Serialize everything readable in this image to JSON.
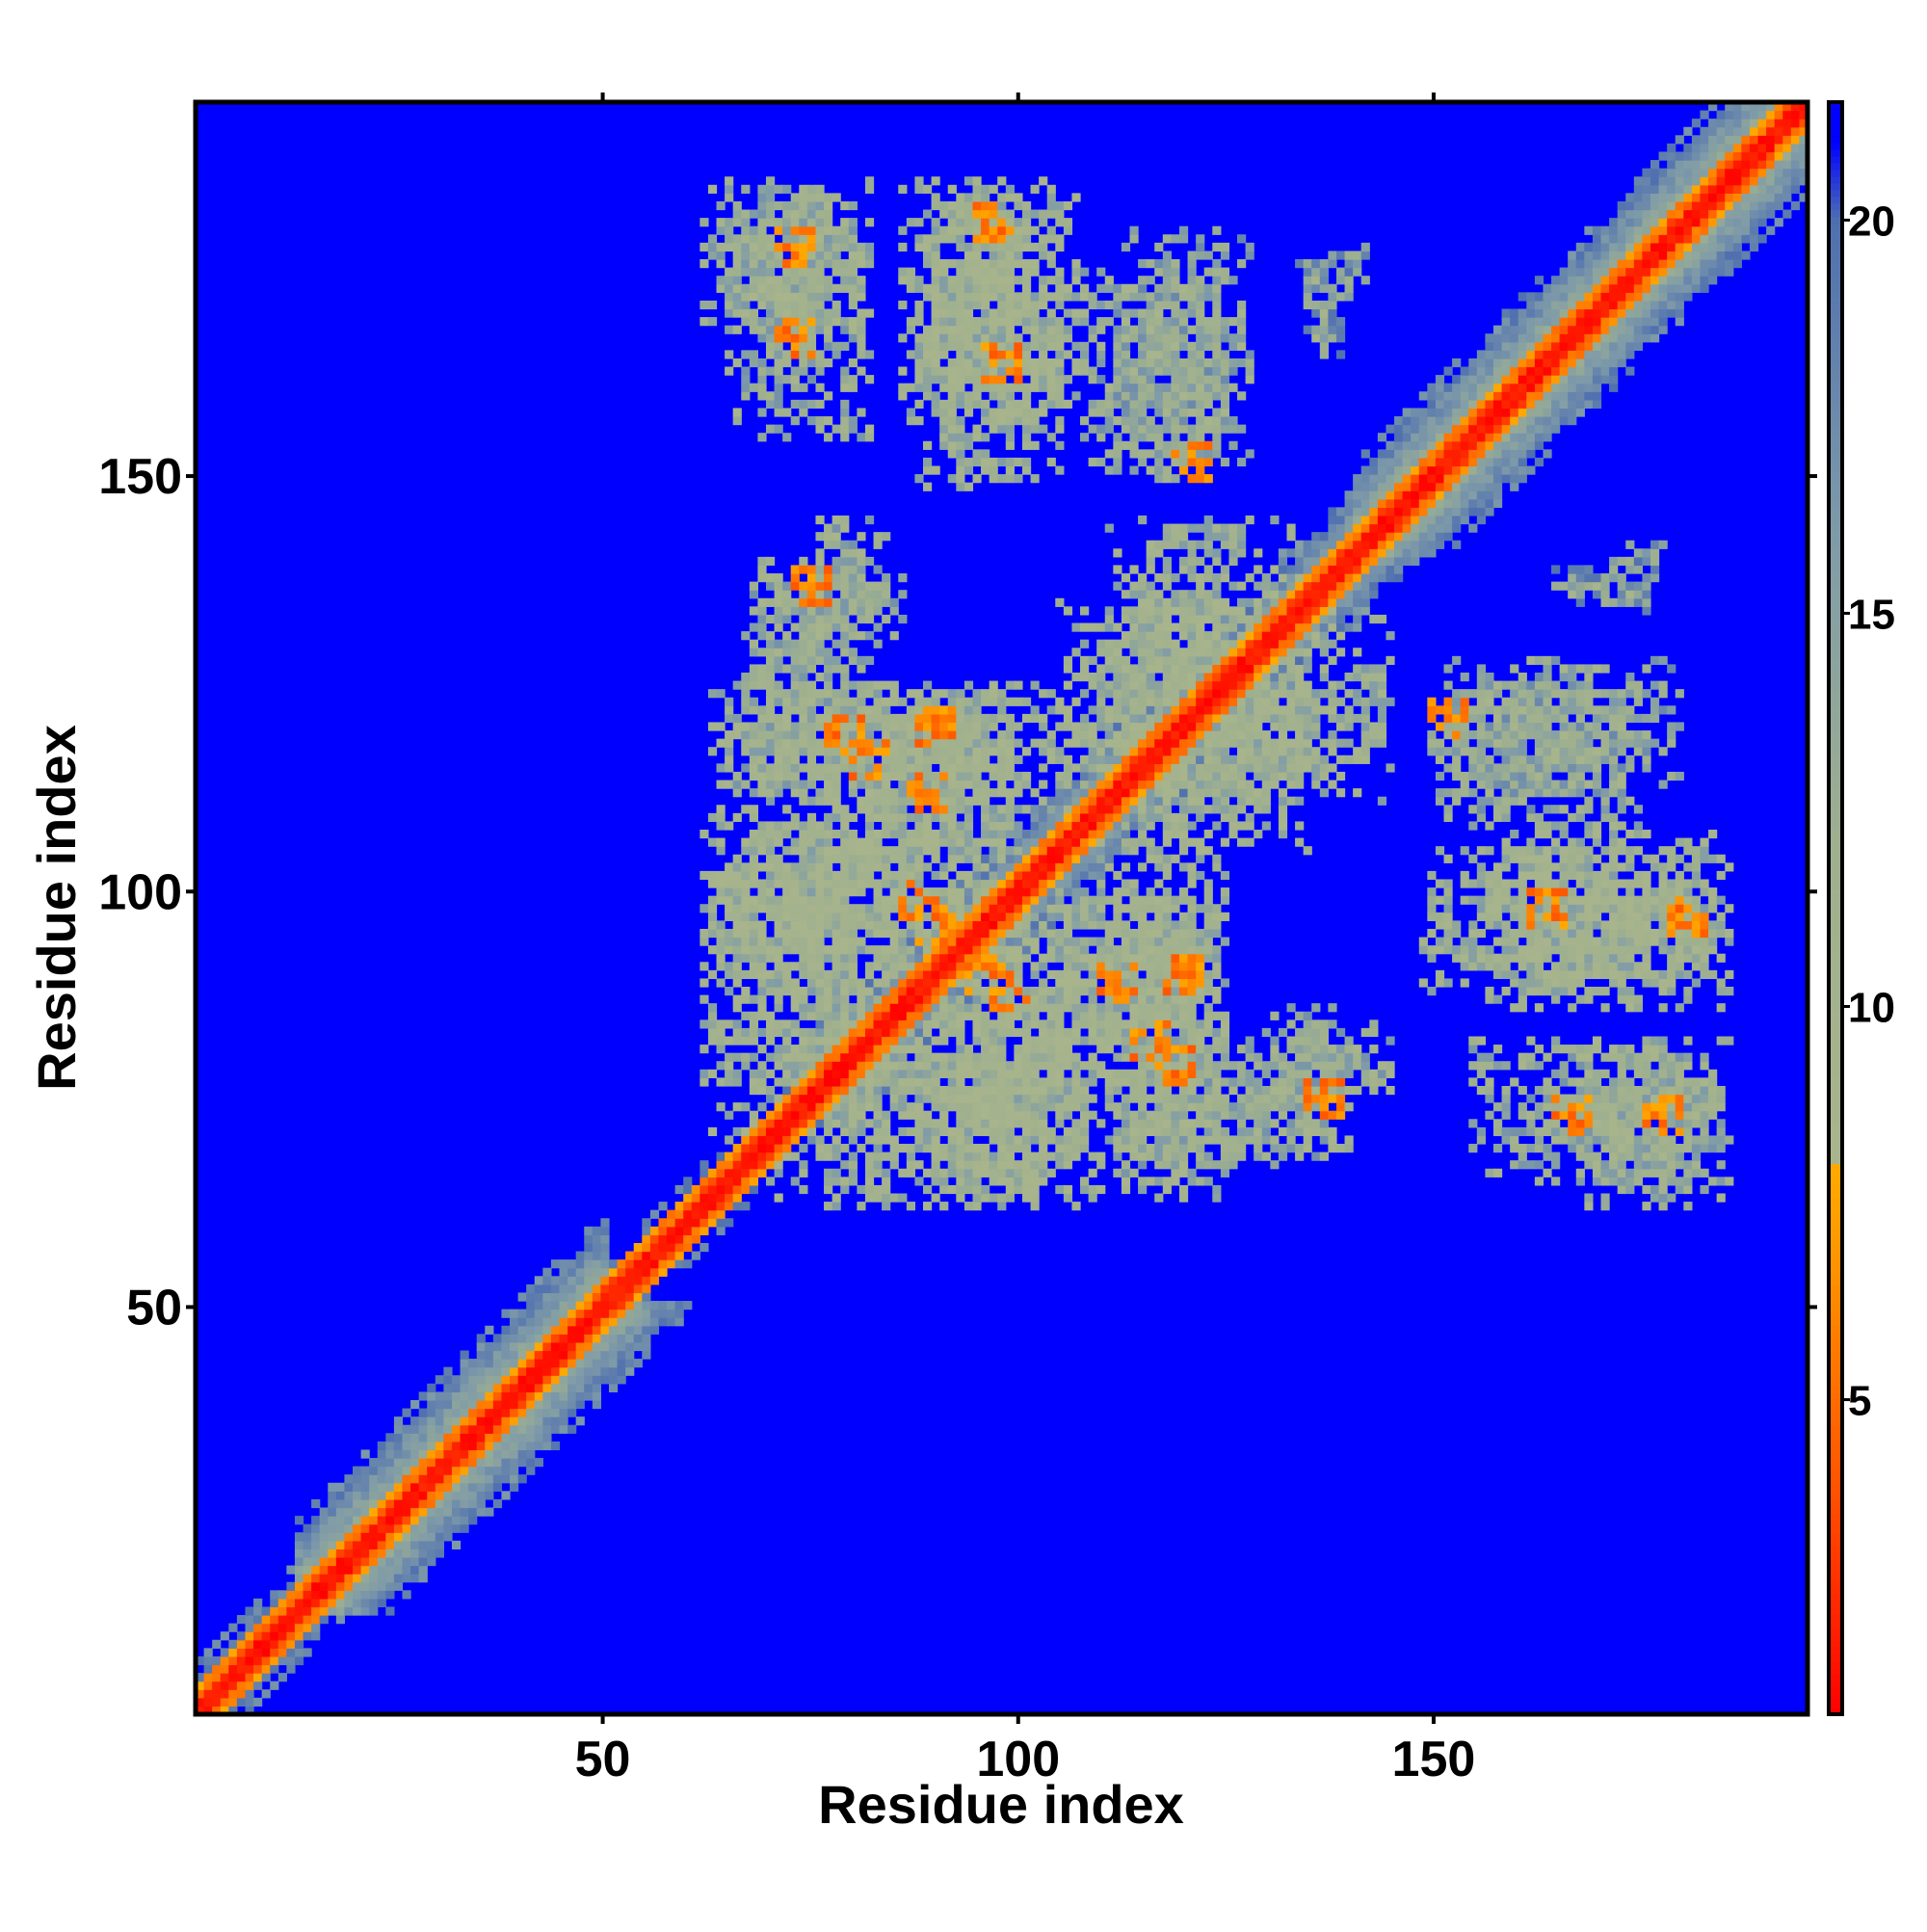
{
  "chart_data": {
    "type": "heatmap",
    "title": "",
    "xlabel": "Residue index",
    "ylabel": "Residue index",
    "n_residues": 195,
    "xlim": [
      1,
      195
    ],
    "ylim": [
      1,
      195
    ],
    "x_ticks": [
      50,
      100,
      150
    ],
    "y_ticks": [
      50,
      100,
      150
    ],
    "colorbar": {
      "range": [
        1,
        21.5
      ],
      "ticks": [
        5,
        10,
        15,
        20
      ],
      "stops": [
        {
          "value": 1,
          "color": "#ff0000"
        },
        {
          "value": 4,
          "color": "#ff5500"
        },
        {
          "value": 7,
          "color": "#ff9900"
        },
        {
          "value": 8,
          "color": "#ffaa00"
        },
        {
          "value": 8.01,
          "color": "#a8b48c"
        },
        {
          "value": 12,
          "color": "#9fb08f"
        },
        {
          "value": 16,
          "color": "#7f9ba8"
        },
        {
          "value": 20,
          "color": "#4f6fb0"
        },
        {
          "value": 21,
          "color": "#0000ff"
        }
      ]
    },
    "background_value": 21,
    "background_color": "#0000ff",
    "description_of_structure": {
      "diagonal_band": [
        {
          "from": 1,
          "to": 12,
          "half_width": 4
        },
        {
          "from": 12,
          "to": 50,
          "half_width": 9
        },
        {
          "from": 50,
          "to": 72,
          "half_width": 3
        },
        {
          "from": 72,
          "to": 140,
          "half_width": 6
        },
        {
          "from": 140,
          "to": 195,
          "half_width": 9
        }
      ],
      "contact_clusters": [
        {
          "x": [
            62,
            82
          ],
          "y": [
            168,
            185
          ],
          "level": 13
        },
        {
          "x": [
            86,
            108
          ],
          "y": [
            155,
            185
          ],
          "level": 12
        },
        {
          "x": [
            112,
            128
          ],
          "y": [
            150,
            180
          ],
          "level": 14
        },
        {
          "x": [
            134,
            142
          ],
          "y": [
            172,
            178
          ],
          "level": 15
        },
        {
          "x": [
            68,
            86
          ],
          "y": [
            130,
            140
          ],
          "level": 13
        },
        {
          "x": [
            165,
            175
          ],
          "y": [
            135,
            140
          ],
          "level": 16
        },
        {
          "x": [
            63,
            110
          ],
          "y": [
            108,
            125
          ],
          "level": 12
        },
        {
          "x": [
            105,
            145
          ],
          "y": [
            110,
            135
          ],
          "level": 12
        },
        {
          "x": [
            150,
            175
          ],
          "y": [
            108,
            125
          ],
          "level": 14
        },
        {
          "x": [
            62,
            100
          ],
          "y": [
            88,
            108
          ],
          "level": 11
        },
        {
          "x": [
            100,
            125
          ],
          "y": [
            80,
            100
          ],
          "level": 12
        },
        {
          "x": [
            149,
            186
          ],
          "y": [
            88,
            105
          ],
          "level": 12
        },
        {
          "x": [
            70,
            110
          ],
          "y": [
            62,
            85
          ],
          "level": 12
        },
        {
          "x": [
            112,
            135
          ],
          "y": [
            66,
            82
          ],
          "level": 13
        },
        {
          "x": [
            130,
            145
          ],
          "y": [
            74,
            84
          ],
          "level": 13
        },
        {
          "x": [
            155,
            186
          ],
          "y": [
            65,
            82
          ],
          "level": 13
        }
      ],
      "hot_spots": [
        {
          "x": 73,
          "y": 178
        },
        {
          "x": 97,
          "y": 181
        },
        {
          "x": 79,
          "y": 119
        },
        {
          "x": 90,
          "y": 120
        },
        {
          "x": 88,
          "y": 99
        },
        {
          "x": 96,
          "y": 90
        },
        {
          "x": 112,
          "y": 89
        },
        {
          "x": 116,
          "y": 82
        },
        {
          "x": 164,
          "y": 98
        },
        {
          "x": 167,
          "y": 73
        },
        {
          "x": 137,
          "y": 75
        },
        {
          "x": 152,
          "y": 121
        }
      ]
    }
  }
}
